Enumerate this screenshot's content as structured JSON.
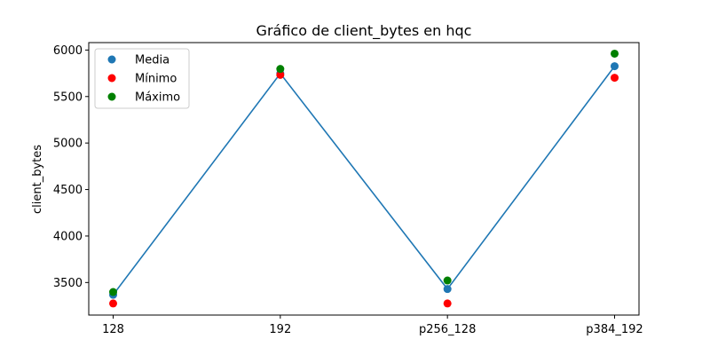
{
  "chart_data": {
    "type": "scatter",
    "title": "Gráfico de client_bytes en hqc",
    "xlabel": "",
    "ylabel": "client_bytes",
    "categories": [
      "128",
      "192",
      "p256_128",
      "p384_192"
    ],
    "ylim": [
      3150,
      6080
    ],
    "yticks": [
      3500,
      4000,
      4500,
      5000,
      5500,
      6000
    ],
    "grid": false,
    "legend_position": "top-left",
    "line_series": "Media",
    "series": [
      {
        "name": "Media",
        "color": "#1f77b4",
        "values": [
          3368,
          5748,
          3430,
          5826
        ],
        "error": [
          30,
          15,
          30,
          40
        ]
      },
      {
        "name": "Mínimo",
        "color": "#ff0000",
        "values": [
          3275,
          5733,
          3275,
          5702
        ]
      },
      {
        "name": "Máximo",
        "color": "#008000",
        "values": [
          3398,
          5797,
          3522,
          5961
        ]
      }
    ]
  }
}
